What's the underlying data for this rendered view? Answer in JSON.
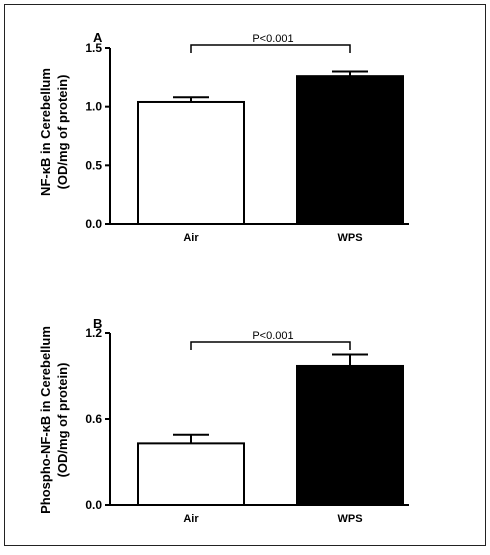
{
  "chart_data": [
    {
      "type": "bar",
      "panel_label": "A",
      "categories": [
        "Air",
        "WPS"
      ],
      "values": [
        1.04,
        1.26
      ],
      "errors": [
        0.04,
        0.04
      ],
      "bar_fills": [
        "#ffffff",
        "#000000"
      ],
      "ylabel_line1": "NF-κB in Cerebellum",
      "ylabel_line2": "(OD/mg of protein)",
      "ylim": [
        0,
        1.5
      ],
      "yticks": [
        0.0,
        0.5,
        1.0,
        1.5
      ],
      "ytick_labels": [
        "0.0",
        "0.5",
        "1.0",
        "1.5"
      ],
      "annotation": "P<0.001",
      "grid": false
    },
    {
      "type": "bar",
      "panel_label": "B",
      "categories": [
        "Air",
        "WPS"
      ],
      "values": [
        0.43,
        0.97
      ],
      "errors": [
        0.06,
        0.08
      ],
      "bar_fills": [
        "#ffffff",
        "#000000"
      ],
      "ylabel_line1": "Phospho-NF-κB in Cerebellum",
      "ylabel_line2": "(OD/mg of protein)",
      "ylim": [
        0,
        1.2
      ],
      "yticks": [
        0.0,
        0.6,
        1.2
      ],
      "ytick_labels": [
        "0.0",
        "0.6",
        "1.2"
      ],
      "annotation": "P<0.001",
      "grid": false
    }
  ]
}
